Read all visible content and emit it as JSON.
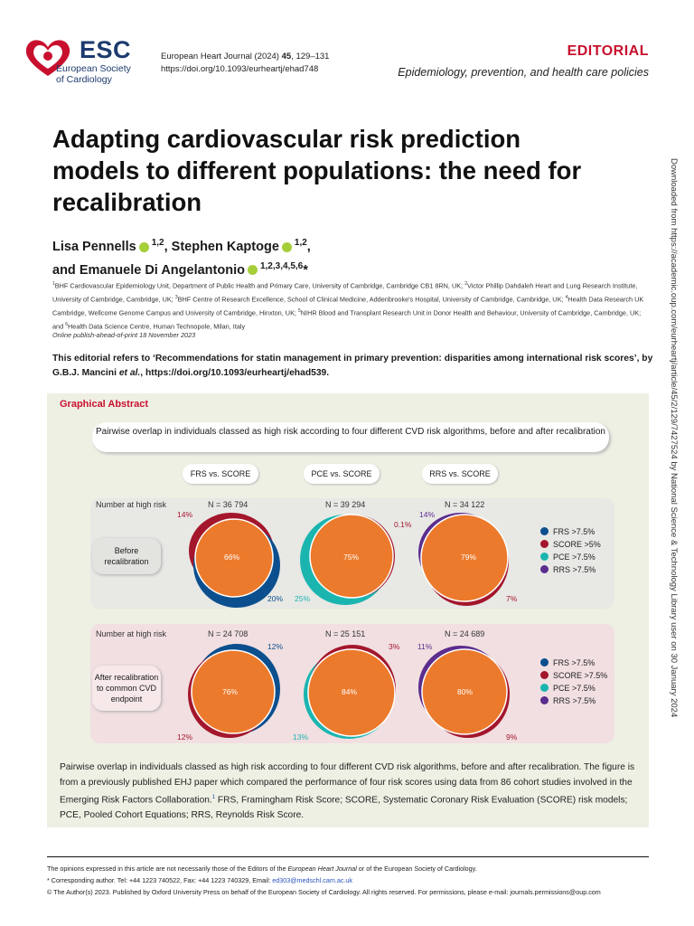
{
  "logo": {
    "name": "ESC",
    "subtitle_line1": "European Society",
    "subtitle_line2": "of Cardiology"
  },
  "journal": {
    "citation_prefix": "European Heart Journal (2024) ",
    "volume": "45",
    "pages": ", 129–131",
    "doi": "https://doi.org/10.1093/eurheartj/ehad748"
  },
  "section": "EDITORIAL",
  "topic": "Epidemiology, prevention, and health care policies",
  "title": "Adapting cardiovascular risk prediction models to different populations: the need for recalibration",
  "authors": [
    {
      "name": "Lisa Pennells",
      "sup": "1,2"
    },
    {
      "name": "Stephen Kaptoge",
      "sup": "1,2"
    },
    {
      "name": "Emanuele Di Angelantonio",
      "sup": "1,2,3,4,5,6",
      "corresponding": "*"
    }
  ],
  "authors_and": "and",
  "affiliations": [
    "BHF Cardiovascular Epidemiology Unit, Department of Public Health and Primary Care, University of Cambridge, Cambridge CB1 8RN, UK;",
    "Victor Phillip Dahdaleh Heart and Lung Research Institute, University of Cambridge, Cambridge, UK;",
    "BHF Centre of Research Excellence, School of Clinical Medicine, Addenbrooke's Hospital, University of Cambridge, Cambridge, UK;",
    "Health Data Research UK Cambridge, Wellcome Genome Campus and University of Cambridge, Hinxton, UK;",
    "NIHR Blood and Transplant Research Unit in Donor Health and Behaviour, University of Cambridge, Cambridge, UK; and",
    "Health Data Science Centre, Human Technopole, Milan, Italy"
  ],
  "online": "Online publish-ahead-of-print 18 November 2023",
  "refers": {
    "pre": "This editorial refers to ‘Recommendations for statin management in primary prevention: disparities among international risk scores’, by G.B.J. Mancini ",
    "etal": "et al.",
    "post": ", https://doi.org/10.1093/eurheartj/ehad539."
  },
  "side_text": "Downloaded from https://academic.oup.com/eurheartj/article/45/2/129/7427524 by National Science & Technology Library user on 30 January 2024",
  "graphical_abstract": {
    "heading": "Graphical Abstract",
    "title": "Pairwise overlap in individuals classed as high risk according to four different CVD risk algorithms, before and after recalibration",
    "comparisons": [
      "FRS vs. SCORE",
      "PCE vs. SCORE",
      "RRS vs. SCORE"
    ],
    "number_label": "Number at high risk",
    "colors": {
      "FRS": "#0b4f8e",
      "SCORE": "#a3162c",
      "PCE": "#1bb5b0",
      "RRS": "#5b2d8e",
      "overlap": "#ec7a2c"
    },
    "before": {
      "label": "Before recalibration",
      "n": [
        "N = 36 794",
        "N = 39 294",
        "N = 34 122"
      ],
      "venns": [
        {
          "a": "14%",
          "overlap": "66%",
          "b": "20%"
        },
        {
          "a": "0.1%",
          "overlap": "75%",
          "b": "25%"
        },
        {
          "a": "14%",
          "overlap": "79%",
          "b": "7%"
        }
      ],
      "legend": [
        "FRS >7.5%",
        "SCORE >5%",
        "PCE >7.5%",
        "RRS >7.5%"
      ]
    },
    "after": {
      "label": "After recalibration to common CVD endpoint",
      "n": [
        "N = 24 708",
        "N = 25 151",
        "N = 24 689"
      ],
      "venns": [
        {
          "a": "12%",
          "overlap": "76%",
          "b": "12%"
        },
        {
          "a": "3%",
          "overlap": "84%",
          "b": "13%"
        },
        {
          "a": "11%",
          "overlap": "80%",
          "b": "9%"
        }
      ],
      "legend": [
        "FRS >7.5%",
        "SCORE >7.5%",
        "PCE >7.5%",
        "RRS >7.5%"
      ]
    },
    "caption_a": "Pairwise overlap in individuals classed as high risk according to four different CVD risk algorithms, before and after recalibration. The figure is from a previously published EHJ paper which compared the performance of four risk scores using data from 86 cohort studies involved in the Emerging Risk Factors Collaboration.",
    "caption_ref": "1",
    "caption_b": " FRS, Framingham Risk Score; SCORE, Systematic Coronary Risk Evaluation (SCORE) risk models; PCE, Pooled Cohort Equations; RRS, Reynolds Risk Score."
  },
  "footer": {
    "opinions_a": "The opinions expressed in this article are not necessarily those of the Editors of the ",
    "opinions_journal": "European Heart Journal",
    "opinions_b": " or of the European Society of Cardiology.",
    "corresponding": "* Corresponding author. Tel: +44 1223 740522, Fax: +44 1223 740329, Email: ",
    "email": "ed303@medschl.cam.ac.uk",
    "copyright": "© The Author(s) 2023. Published by Oxford University Press on behalf of the European Society of Cardiology. All rights reserved. For permissions, please e-mail: journals.permissions@oup.com"
  }
}
